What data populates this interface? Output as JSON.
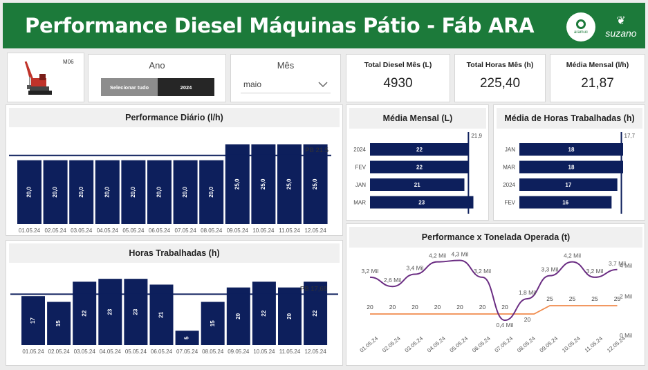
{
  "header": {
    "title": "Performance Diesel Máquinas Pátio - Fáb ARA",
    "partner_logo_text": "aramuc",
    "brand": "suzano",
    "header_color": "#1c7a3a"
  },
  "machine": {
    "label": "M06"
  },
  "slicer_ano": {
    "title": "Ano",
    "options": [
      "Selecionar tudo",
      "2024"
    ],
    "selected": "2024"
  },
  "slicer_mes": {
    "title": "Mês",
    "value": "maio"
  },
  "kpis": [
    {
      "label": "Total Diesel Mês (L)",
      "value": "4930"
    },
    {
      "label": "Total Horas Mês (h)",
      "value": "225,40"
    },
    {
      "label": "Média Mensal (l/h)",
      "value": "21,87"
    }
  ],
  "colors": {
    "bar": "#0d1f5c",
    "line_purple": "#6a2c82",
    "line_orange": "#f08a4b"
  },
  "chart_data": [
    {
      "id": "daily",
      "type": "bar",
      "title": "Performance Diário (l/h)",
      "categories": [
        "01.05.24",
        "02.05.24",
        "03.05.24",
        "04.05.24",
        "05.05.24",
        "06.05.24",
        "07.05.24",
        "08.05.24",
        "09.05.24",
        "10.05.24",
        "11.05.24",
        "12.05.24"
      ],
      "values": [
        20,
        20,
        20,
        20,
        20,
        20,
        20,
        20,
        25,
        25,
        25,
        25
      ],
      "value_labels": [
        "20,0",
        "20,0",
        "20,0",
        "20,0",
        "20,0",
        "20,0",
        "20,0",
        "20,0",
        "25,0",
        "25,0",
        "25,0",
        "25,0"
      ],
      "reference": {
        "label": "PB 21.5",
        "value": 21.5
      },
      "ylim": [
        0,
        26
      ]
    },
    {
      "id": "hours",
      "type": "bar",
      "title": "Horas Trabalhadas (h)",
      "categories": [
        "01.05.24",
        "02.05.24",
        "03.05.24",
        "04.05.24",
        "05.05.24",
        "06.05.24",
        "07.05.24",
        "08.05.24",
        "09.05.24",
        "10.05.24",
        "11.05.24",
        "12.05.24"
      ],
      "values": [
        17,
        15,
        22,
        23,
        23,
        21,
        5,
        15,
        20,
        22,
        20,
        22
      ],
      "reference": {
        "label": "PB 17,68",
        "value": 17.68
      },
      "ylim": [
        0,
        24
      ]
    },
    {
      "id": "monthly",
      "type": "bar",
      "orientation": "horizontal",
      "title": "Média Mensal (L)",
      "categories": [
        "2024",
        "FEV",
        "JAN",
        "MAR"
      ],
      "values": [
        22,
        22,
        21,
        23
      ],
      "reference": {
        "label": "21,9",
        "value": 21.9
      },
      "xlim": [
        0,
        24
      ]
    },
    {
      "id": "monthly_hours",
      "type": "bar",
      "orientation": "horizontal",
      "title": "Média de Horas Trabalhadas (h)",
      "categories": [
        "JAN",
        "MAR",
        "2024",
        "FEV"
      ],
      "values": [
        18,
        18,
        17,
        16
      ],
      "reference": {
        "label": "17,7",
        "value": 17.7
      },
      "xlim": [
        0,
        18
      ]
    },
    {
      "id": "combo",
      "type": "line",
      "title": "Performance x Tonelada Operada (t)",
      "x": [
        "01.05.24",
        "02.05.24",
        "03.05.24",
        "04.05.24",
        "05.05.24",
        "06.05.24",
        "07.05.24",
        "08.05.24",
        "09.05.24",
        "10.05.24",
        "11.05.24",
        "12.05.24"
      ],
      "series": [
        {
          "values": [
            3200,
            2600,
            3400,
            4200,
            4300,
            3200,
            400,
            1800,
            3300,
            4200,
            3200,
            3700
          ],
          "labels": [
            "3,2 Mil",
            "2,6 Mil",
            "3,4 Mil",
            "4,2 Mil",
            "4,3 Mil",
            "3,2 Mil",
            "0,4 Mil",
            "1,8 Mil",
            "3,3 Mil",
            "4,2 Mil",
            "3,2 Mil",
            "3,7 Mil"
          ]
        },
        {
          "values": [
            20,
            20,
            20,
            20,
            20,
            20,
            20,
            20,
            25,
            25,
            25,
            25
          ]
        }
      ],
      "right_axis_ticks": [
        "4 Mil",
        "2 Mil",
        "0 Mil"
      ]
    }
  ]
}
